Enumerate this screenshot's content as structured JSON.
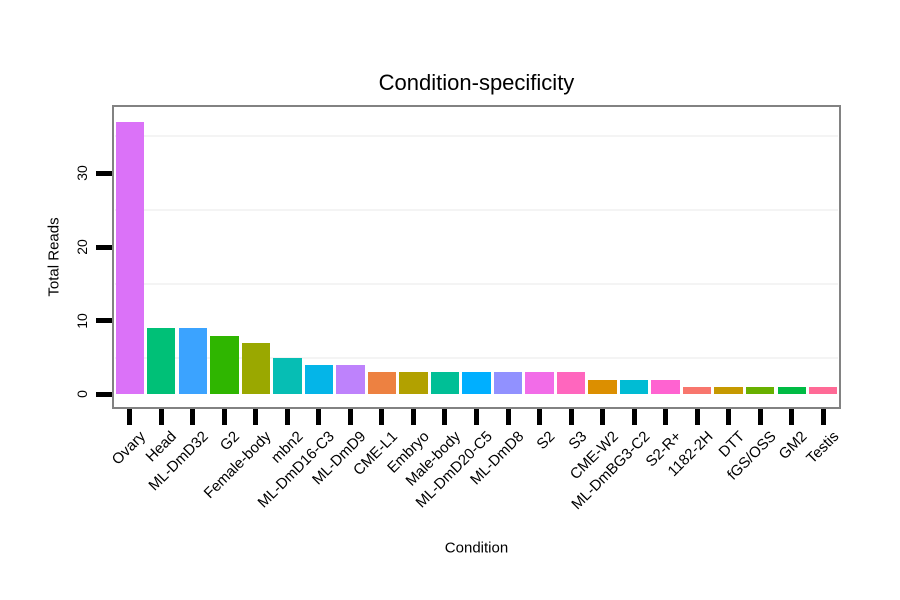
{
  "chart_data": {
    "type": "bar",
    "title": "Condition-specificity",
    "xlabel": "Condition",
    "ylabel": "Total Reads",
    "categories": [
      "Ovary",
      "Head",
      "ML-DmD32",
      "G2",
      "Female-body",
      "mbn2",
      "ML-DmD16-C3",
      "ML-DmD9",
      "CME-L1",
      "Embryo",
      "Male-body",
      "ML-DmD20-C5",
      "ML-DmD8",
      "S2",
      "S3",
      "CME-W2",
      "ML-DmBG3-C2",
      "S2-R+",
      "1182-2H",
      "DTT",
      "fGS/OSS",
      "GM2",
      "Testis"
    ],
    "values": [
      37,
      9,
      9,
      8,
      7,
      5,
      4,
      4,
      3,
      3,
      3,
      3,
      3,
      3,
      3,
      2,
      2,
      2,
      1,
      1,
      1,
      1,
      1
    ],
    "bar_colors": [
      "#DB72F8",
      "#00C077",
      "#3BA3FF",
      "#2FB600",
      "#9AA800",
      "#06BEB4",
      "#04B5E8",
      "#BE82FC",
      "#ED8141",
      "#B2A100",
      "#00BF96",
      "#00AFFF",
      "#9191FF",
      "#F26CE8",
      "#FF66BE",
      "#DC8F00",
      "#00BCD4",
      "#FF63D1",
      "#F8766D",
      "#C69900",
      "#68B000",
      "#00BB44",
      "#FF6A96"
    ],
    "yticks": [
      0,
      10,
      20,
      30
    ],
    "minor_gridlines": [
      5,
      15,
      25,
      35
    ],
    "ylim": [
      -1.7,
      39
    ],
    "grid": "minor-horizontal-only",
    "legend": "none",
    "bar_width_fraction": 0.9,
    "x_tick_label_angle": 45,
    "y_tick_label_angle": 90
  },
  "style": {
    "background": "#ffffff",
    "panel_background": "#ffffff",
    "panel_border": "#828282",
    "tick_color": "#000000",
    "text_color": "#000000",
    "minor_grid_color": "#f4f4f4"
  }
}
